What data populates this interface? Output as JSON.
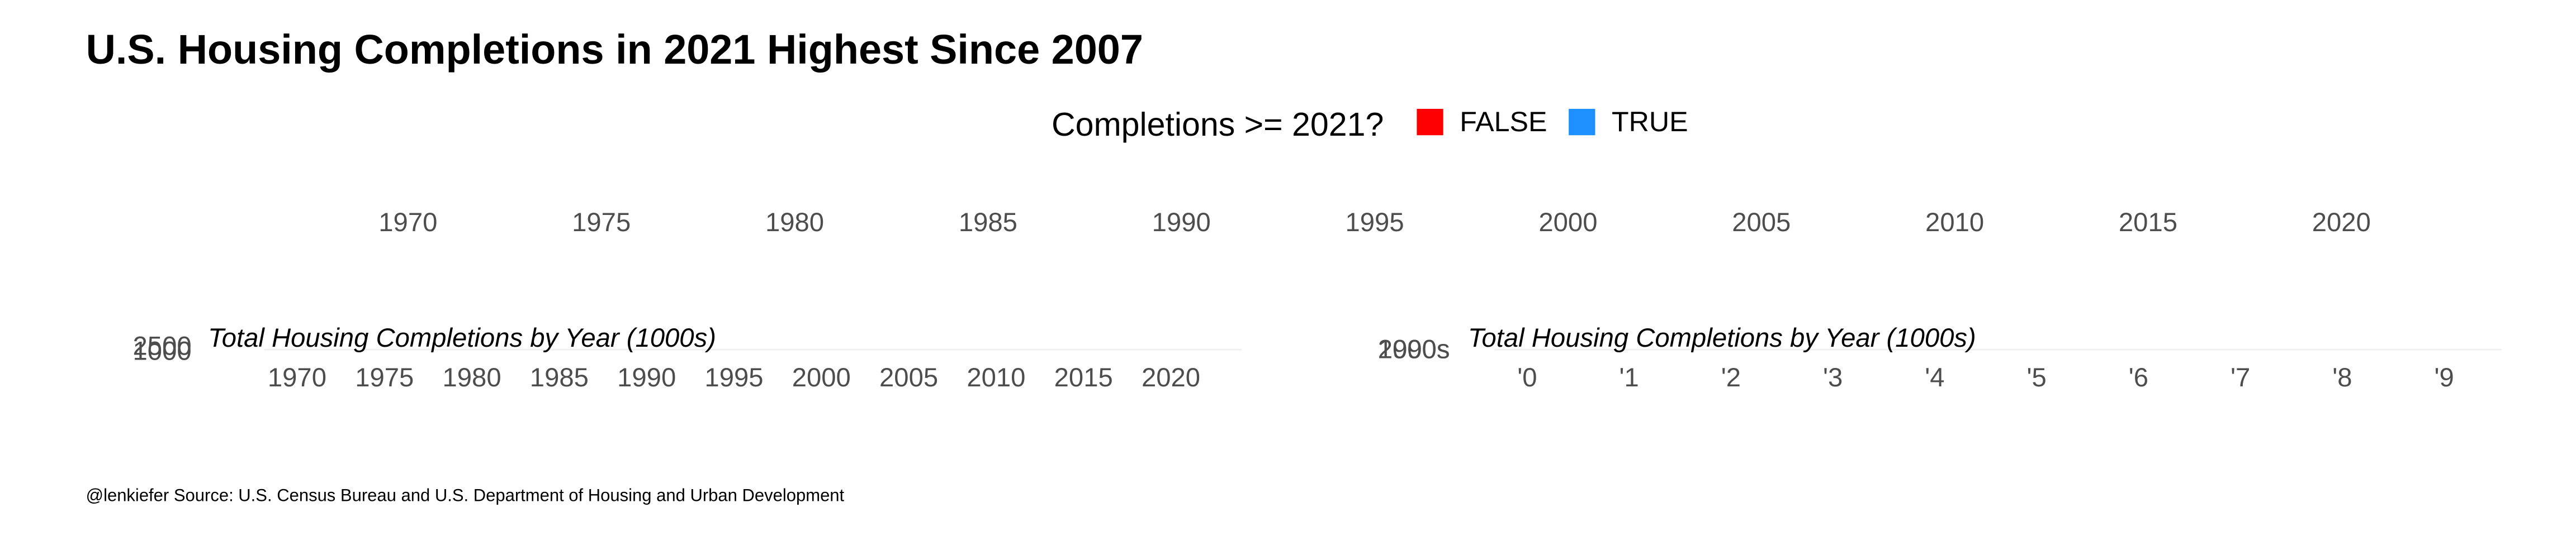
{
  "title": "U.S. Housing Completions in 2021 Highest Since 2007",
  "legend": {
    "title": "Completions >= 2021?",
    "items": [
      {
        "name": "FALSE",
        "color": "#ff0000"
      },
      {
        "name": "TRUE",
        "color": "#1e90ff"
      }
    ]
  },
  "top_axis": {
    "xlim": [
      1965,
      2025
    ],
    "xticks": [
      1970,
      1975,
      1980,
      1985,
      1990,
      1995,
      2000,
      2005,
      2010,
      2015,
      2020
    ]
  },
  "chart_data": [
    {
      "type": "bar",
      "subtitle": "Total Housing Completions by Year (1000s)",
      "xlim": [
        1965,
        2025
      ],
      "xticks": [
        1970,
        1975,
        1980,
        1985,
        1990,
        1995,
        2000,
        2005,
        2010,
        2015,
        2020
      ],
      "ylim": [
        1000,
        2500
      ],
      "yticks": [
        1000,
        2500
      ]
    },
    {
      "type": "heatmap",
      "subtitle": "Total Housing Completions by Year (1000s)",
      "categories": [
        "'0",
        "'1",
        "'2",
        "'3",
        "'4",
        "'5",
        "'6",
        "'7",
        "'8",
        "'9"
      ],
      "y_categories": [
        "1990s",
        "2000s"
      ]
    }
  ],
  "caption": "@lenkiefer Source: U.S. Census Bureau and U.S. Department of Housing and Urban Development"
}
